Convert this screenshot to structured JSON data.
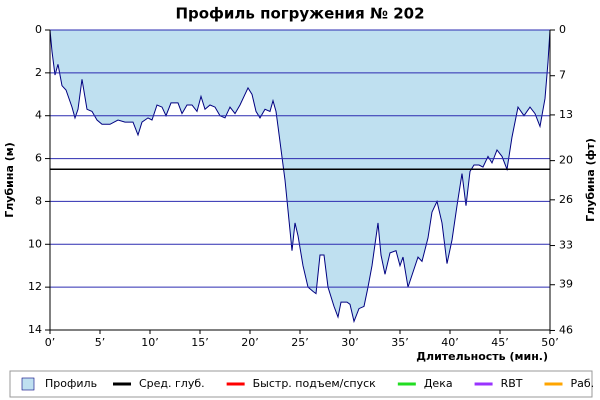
{
  "chart_data": {
    "type": "area",
    "title": "Профиль погружения № 202",
    "xlabel": "Длительность (мин.)",
    "ylabel": "Глубина (м)",
    "y2label": "Глубина (фт)",
    "x": [
      0,
      0.2,
      0.5,
      0.8,
      1.2,
      1.6,
      2.2,
      2.5,
      2.8,
      3.2,
      3.7,
      4.2,
      4.7,
      5.2,
      6,
      6.8,
      7.5,
      8.3,
      8.8,
      9.2,
      9.8,
      10.2,
      10.7,
      11.2,
      11.6,
      12.1,
      12.8,
      13.2,
      13.7,
      14.2,
      14.7,
      15.1,
      15.5,
      16,
      16.5,
      17,
      17.5,
      18,
      18.5,
      19,
      19.5,
      19.8,
      20.2,
      20.6,
      21,
      21.5,
      22,
      22.3,
      22.6,
      22.8,
      23.5,
      24.2,
      24.5,
      24.8,
      25.3,
      25.8,
      26.3,
      26.6,
      27,
      27.4,
      27.8,
      28.4,
      28.8,
      29.1,
      29.7,
      30,
      30.4,
      30.9,
      31.4,
      31.8,
      32.2,
      32.8,
      33.1,
      33.5,
      34,
      34.6,
      35,
      35.3,
      35.8,
      36.3,
      36.8,
      37.2,
      37.8,
      38.2,
      38.7,
      39.2,
      39.7,
      40.2,
      40.7,
      41.2,
      41.6,
      42,
      42.4,
      42.9,
      43.3,
      43.8,
      44.2,
      44.7,
      45.2,
      45.7,
      46.2,
      46.8,
      47.4,
      48,
      48.5,
      49,
      49.5,
      49.8,
      50
    ],
    "series": [
      {
        "name": "Профиль",
        "color": "#000080",
        "fill": "#bfe0f0",
        "values": [
          0,
          1.0,
          2.1,
          1.6,
          2.6,
          2.8,
          3.6,
          4.1,
          3.7,
          2.3,
          3.7,
          3.8,
          4.2,
          4.4,
          4.4,
          4.2,
          4.3,
          4.3,
          4.9,
          4.3,
          4.1,
          4.2,
          3.5,
          3.6,
          4.0,
          3.4,
          3.4,
          3.9,
          3.5,
          3.5,
          3.8,
          3.1,
          3.7,
          3.5,
          3.6,
          4.0,
          4.1,
          3.6,
          3.9,
          3.5,
          3.0,
          2.7,
          3.0,
          3.8,
          4.1,
          3.7,
          3.8,
          3.3,
          3.8,
          4.5,
          7.0,
          10.3,
          9.0,
          9.6,
          11.0,
          12.0,
          12.2,
          12.3,
          10.5,
          10.5,
          12.0,
          12.9,
          13.4,
          12.7,
          12.7,
          12.8,
          13.6,
          13.0,
          12.9,
          12.0,
          11.0,
          9.0,
          10.5,
          11.4,
          10.4,
          10.3,
          11.0,
          10.6,
          12.0,
          11.3,
          10.6,
          10.8,
          9.7,
          8.5,
          8.0,
          9.0,
          10.9,
          9.8,
          8.2,
          6.7,
          8.2,
          6.6,
          6.3,
          6.3,
          6.4,
          5.9,
          6.2,
          5.6,
          5.9,
          6.5,
          5.0,
          3.6,
          4.0,
          3.6,
          3.9,
          4.5,
          3.2,
          1.5,
          0
        ]
      }
    ],
    "reference_lines": [
      {
        "name": "Сред. глуб.",
        "color": "#000000",
        "value": 6.5
      }
    ],
    "extra_legend": [
      {
        "name": "Быстр. подъем/спуск",
        "color": "#ff0000"
      },
      {
        "name": "Дека",
        "color": "#22dd22"
      },
      {
        "name": "RBT",
        "color": "#9933ff"
      },
      {
        "name": "Раб.",
        "color": "#ffa500"
      }
    ],
    "xlim": [
      0,
      50
    ],
    "xticks": [
      {
        "value": 0,
        "label": "0’"
      },
      {
        "value": 5,
        "label": "5’"
      },
      {
        "value": 10,
        "label": "10’"
      },
      {
        "value": 15,
        "label": "15’"
      },
      {
        "value": 20,
        "label": "20’"
      },
      {
        "value": 25,
        "label": "25’"
      },
      {
        "value": 30,
        "label": "30’"
      },
      {
        "value": 35,
        "label": "35’"
      },
      {
        "value": 40,
        "label": "40’"
      },
      {
        "value": 45,
        "label": "45’"
      },
      {
        "value": 50,
        "label": "50’"
      }
    ],
    "ylim": [
      0,
      14
    ],
    "yticks": [
      0,
      2,
      4,
      6,
      8,
      10,
      12,
      14
    ],
    "y_inverted": true,
    "y2lim": [
      0,
      45.93
    ],
    "y2ticks": [
      0,
      7,
      13,
      20,
      26,
      33,
      39,
      46
    ],
    "grid": true,
    "grid_color": "#2b2bb0"
  }
}
